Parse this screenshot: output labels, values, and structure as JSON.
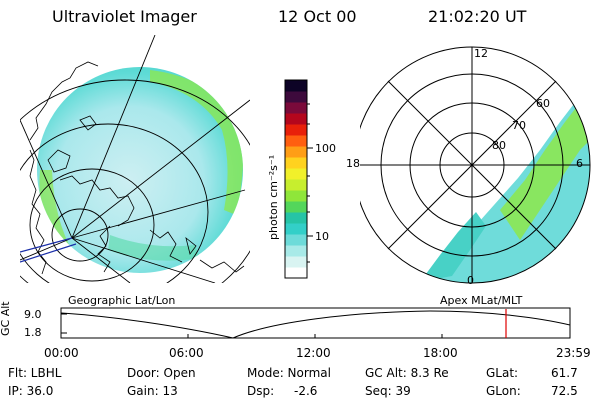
{
  "header": {
    "instrument": "Ultraviolet Imager",
    "date": "12 Oct 00",
    "time": "21:02:20 UT"
  },
  "colorbar": {
    "unit_label": "photon cm⁻²s⁻¹",
    "ticks": [
      "100",
      "10"
    ],
    "ramp": [
      "#ffffff",
      "#d9f4f2",
      "#a8eae8",
      "#6ddbd9",
      "#33cfc8",
      "#26c4a6",
      "#53d65b",
      "#8fe63a",
      "#c7ee2e",
      "#f1f02a",
      "#ffd21f",
      "#ff9e16",
      "#ff5f10",
      "#e8200a",
      "#b4061d",
      "#7a0a3a",
      "#3d0a3c",
      "#0d0326"
    ]
  },
  "polar_plot": {
    "mlt_labels": [
      "12",
      "18",
      "6",
      "0"
    ],
    "mlat_labels": [
      "60",
      "70",
      "80"
    ]
  },
  "projections": {
    "left": "Geographic Lat/Lon",
    "right": "Apex MLat/MLT"
  },
  "altitude_plot": {
    "axis_title": "GC Alt",
    "y_ticks": [
      "9.0",
      "1.8"
    ],
    "x_ticks": [
      "00:00",
      "06:00",
      "12:00",
      "18:00",
      "23:59"
    ],
    "marker_color": "#e00000"
  },
  "footer": {
    "filter": "Flt: LBHL",
    "door": "Door: Open",
    "mode": "Mode: Normal",
    "gc_alt": "GC Alt: 8.3 Re",
    "glat_label": "GLat:",
    "glat_value": "61.7",
    "ip": "IP: 36.0",
    "gain": "Gain: 13",
    "dsp_label": "Dsp:",
    "dsp_value": "-2.6",
    "seq": "Seq: 39",
    "glon_label": "GLon:",
    "glon_value": "72.5"
  }
}
